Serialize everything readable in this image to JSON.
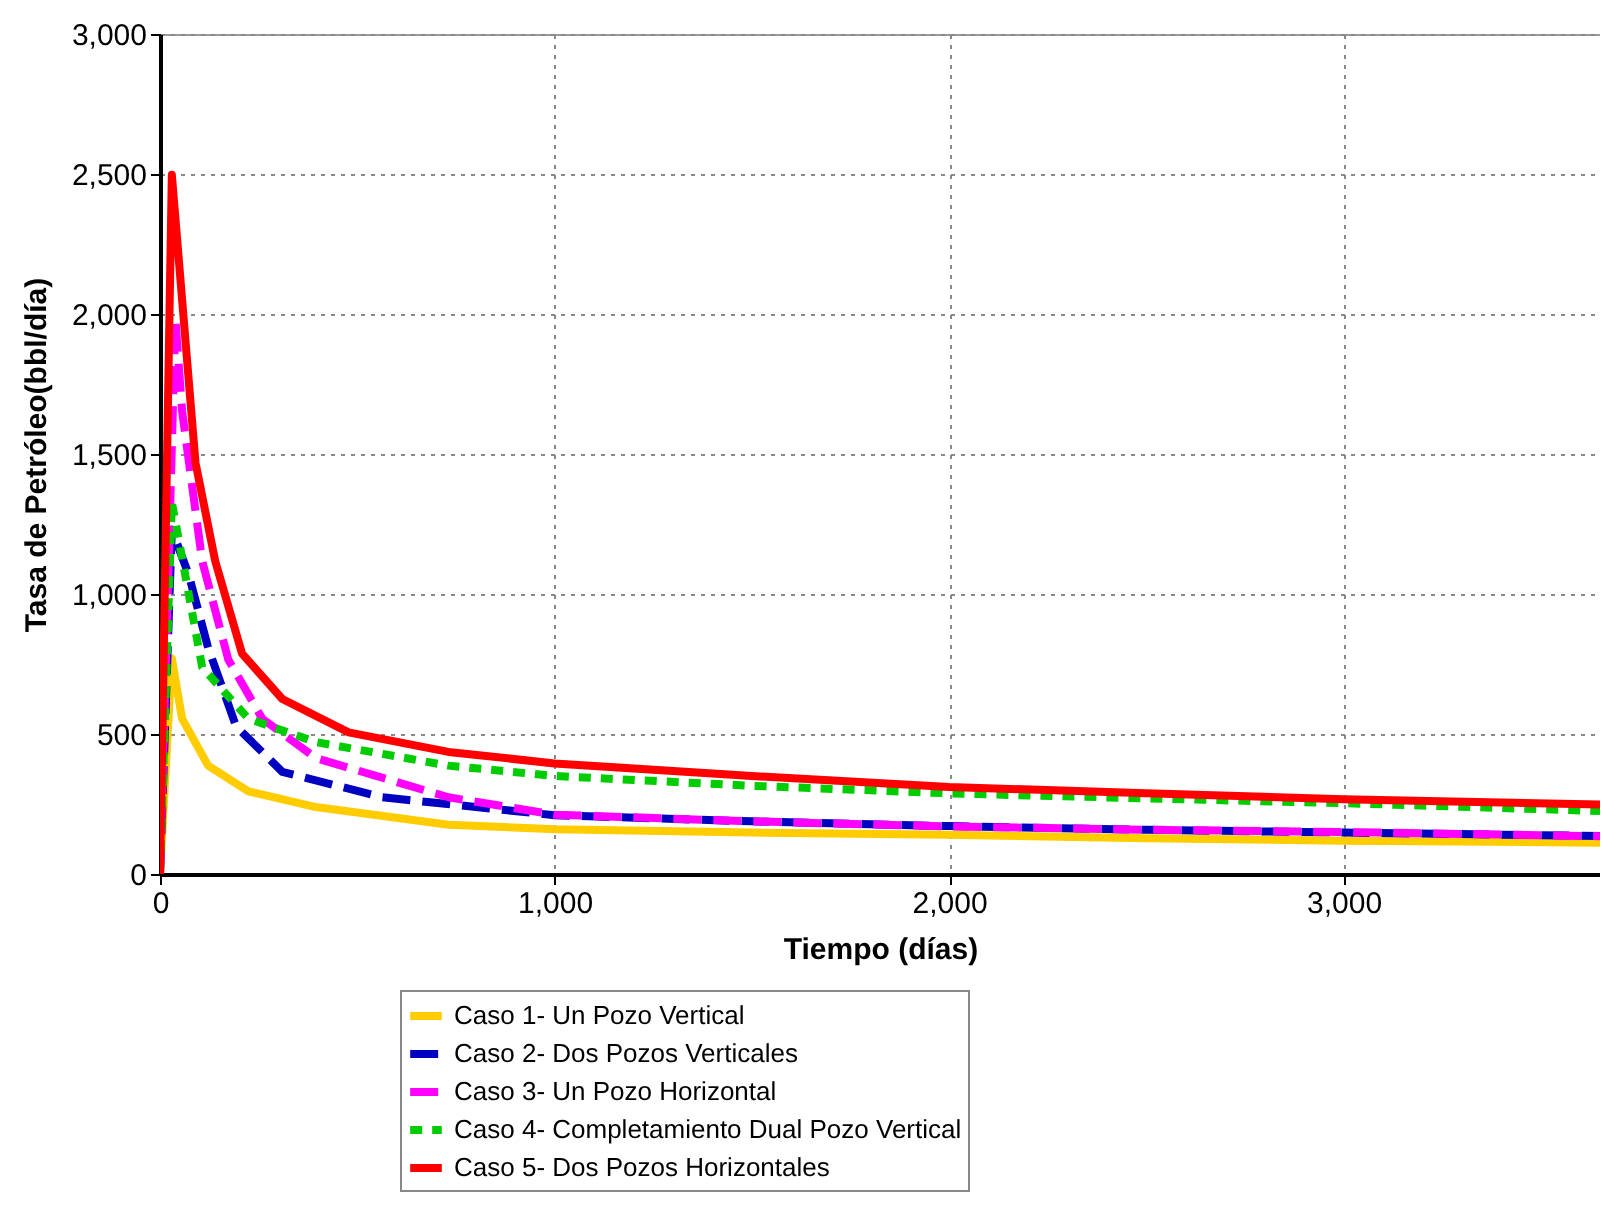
{
  "chart_data": {
    "type": "line",
    "xlabel": "Tiempo (días)",
    "ylabel": "Tasa de Petróleo(bbl/día)",
    "xlim": [
      0,
      3650
    ],
    "ylim": [
      0,
      3000
    ],
    "xticks": [
      0,
      {
        "value": 1000,
        "label": "1,000"
      },
      {
        "value": 2000,
        "label": "2,000"
      },
      {
        "value": 3000,
        "label": "3,000"
      }
    ],
    "yticks": [
      0,
      500,
      {
        "value": 1000,
        "label": "1,000"
      },
      {
        "value": 1500,
        "label": "1,500"
      },
      {
        "value": 2000,
        "label": "2,000"
      },
      {
        "value": 2500,
        "label": "2,500"
      },
      {
        "value": 3000,
        "label": "3,000"
      }
    ],
    "grid": true,
    "legend": "bottom",
    "series": [
      {
        "name": "Caso 1- Un Pozo Vertical",
        "color": "#ffcc00",
        "line_style": "solid",
        "x": [
          0,
          30,
          56,
          122,
          224,
          395,
          731,
          1000,
          1500,
          2000,
          2500,
          3000,
          3650
        ],
        "values": [
          0,
          770,
          555,
          387,
          295,
          239,
          176,
          160,
          148,
          140,
          128,
          119,
          112
        ]
      },
      {
        "name": "Caso 2- Dos Pozos Verticales",
        "color": "#0000c0",
        "line_style": "dashed",
        "x": [
          0,
          30,
          73,
          122,
          193,
          310,
          563,
          1000,
          1500,
          2000,
          2500,
          3000,
          3650
        ],
        "values": [
          0,
          1230,
          1068,
          808,
          527,
          365,
          274,
          210,
          188,
          171,
          158,
          148,
          136
        ]
      },
      {
        "name": "Caso 3- Un Pozo Horizontal",
        "color": "#ff00ff",
        "line_style": "dashed",
        "x": [
          0,
          39,
          56,
          107,
          173,
          259,
          395,
          731,
          1000,
          1500,
          2000,
          2500,
          3000,
          3650
        ],
        "values": [
          0,
          1982,
          1653,
          1117,
          766,
          555,
          414,
          274,
          212,
          188,
          170,
          158,
          150,
          135
        ]
      },
      {
        "name": "Caso 4- Completamiento Dual Pozo Vertical",
        "color": "#00cc00",
        "line_style": "dotted",
        "x": [
          0,
          30,
          107,
          224,
          395,
          731,
          1000,
          1500,
          2000,
          2500,
          3000,
          3650
        ],
        "values": [
          0,
          1328,
          738,
          555,
          471,
          387,
          350,
          315,
          288,
          270,
          253,
          225
        ]
      },
      {
        "name": "Caso 5- Dos Pozos Horizontales",
        "color": "#ff0000",
        "line_style": "solid",
        "x": [
          0,
          30,
          90,
          140,
          208,
          310,
          478,
          731,
          1000,
          1500,
          2000,
          2500,
          3000,
          3650
        ],
        "values": [
          0,
          2497,
          1469,
          1117,
          787,
          625,
          506,
          436,
          395,
          350,
          311,
          288,
          267,
          248
        ]
      }
    ]
  }
}
